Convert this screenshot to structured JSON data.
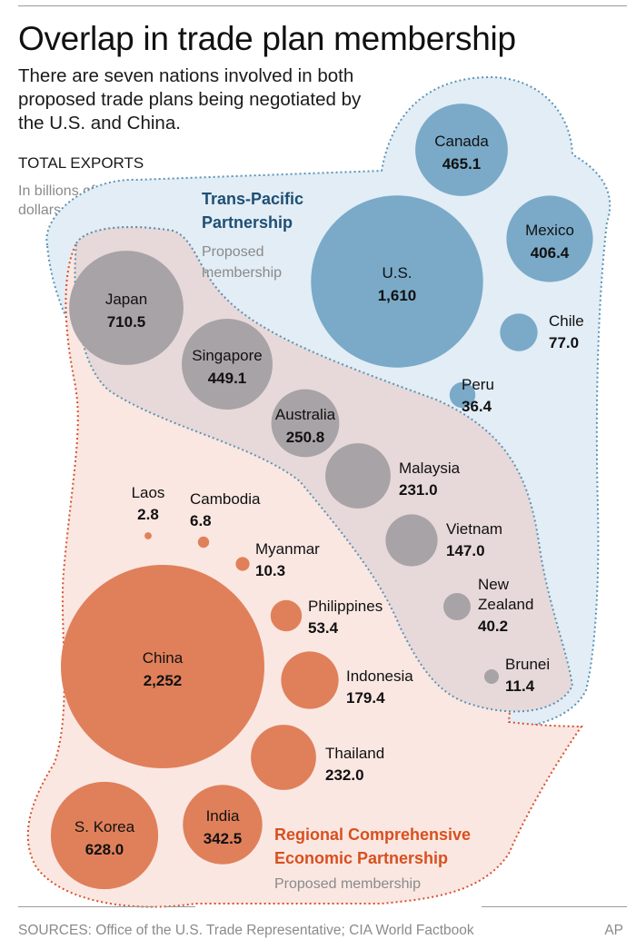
{
  "header": {
    "title": "Overlap in trade plan membership",
    "subtitle": "There are seven nations involved in both proposed trade plans being negotiated by the U.S. and China.",
    "unit_head": "TOTAL EXPORTS",
    "unit_sub": "In billions of dollars"
  },
  "groups": {
    "tpp": {
      "title_lines": [
        "Trans-Pacific",
        "Partnership"
      ],
      "sub_lines": [
        "Proposed",
        "membership"
      ]
    },
    "rcep": {
      "title_lines": [
        "Regional Comprehensive",
        "Economic Partnership"
      ],
      "sub_lines": [
        "Proposed membership"
      ]
    }
  },
  "footer": {
    "sources": "SOURCES: Office of the U.S. Trade Representative; CIA World Factbook",
    "credit": "AP"
  },
  "colors": {
    "tpp_only": "#7aaac8",
    "both": "#a8a3a6",
    "rcep_only": "#e0805a",
    "tpp_region": "#e2edf6",
    "both_region": "#e7d9d9",
    "rcep_region": "#fae7e2",
    "tpp_border": "#5b93b5",
    "rcep_border": "#d9502a"
  },
  "chart_data": {
    "type": "bubble",
    "title": "Overlap in trade plan membership",
    "value_label": "TOTAL EXPORTS",
    "unit": "In billions of dollars",
    "categories": [
      "TPP only",
      "Both",
      "RCEP only"
    ],
    "points": [
      {
        "name": "Canada",
        "label": "465.1",
        "value": 465.1,
        "group": "TPP only"
      },
      {
        "name": "Mexico",
        "label": "406.4",
        "value": 406.4,
        "group": "TPP only"
      },
      {
        "name": "U.S.",
        "label": "1,610",
        "value": 1610,
        "group": "TPP only"
      },
      {
        "name": "Chile",
        "label": "77.0",
        "value": 77.0,
        "group": "TPP only"
      },
      {
        "name": "Peru",
        "label": "36.4",
        "value": 36.4,
        "group": "TPP only"
      },
      {
        "name": "Japan",
        "label": "710.5",
        "value": 710.5,
        "group": "Both"
      },
      {
        "name": "Singapore",
        "label": "449.1",
        "value": 449.1,
        "group": "Both"
      },
      {
        "name": "Australia",
        "label": "250.8",
        "value": 250.8,
        "group": "Both"
      },
      {
        "name": "Malaysia",
        "label": "231.0",
        "value": 231.0,
        "group": "Both"
      },
      {
        "name": "Vietnam",
        "label": "147.0",
        "value": 147.0,
        "group": "Both"
      },
      {
        "name": "New Zealand",
        "label": "40.2",
        "value": 40.2,
        "group": "Both"
      },
      {
        "name": "Brunei",
        "label": "11.4",
        "value": 11.4,
        "group": "Both"
      },
      {
        "name": "Laos",
        "label": "2.8",
        "value": 2.8,
        "group": "RCEP only"
      },
      {
        "name": "Cambodia",
        "label": "6.8",
        "value": 6.8,
        "group": "RCEP only"
      },
      {
        "name": "Myanmar",
        "label": "10.3",
        "value": 10.3,
        "group": "RCEP only"
      },
      {
        "name": "Philippines",
        "label": "53.4",
        "value": 53.4,
        "group": "RCEP only"
      },
      {
        "name": "China",
        "label": "2,252",
        "value": 2252,
        "group": "RCEP only"
      },
      {
        "name": "Indonesia",
        "label": "179.4",
        "value": 179.4,
        "group": "RCEP only"
      },
      {
        "name": "Thailand",
        "label": "232.0",
        "value": 232.0,
        "group": "RCEP only"
      },
      {
        "name": "S. Korea",
        "label": "628.0",
        "value": 628.0,
        "group": "RCEP only"
      },
      {
        "name": "India",
        "label": "342.5",
        "value": 342.5,
        "group": "RCEP only"
      }
    ]
  }
}
